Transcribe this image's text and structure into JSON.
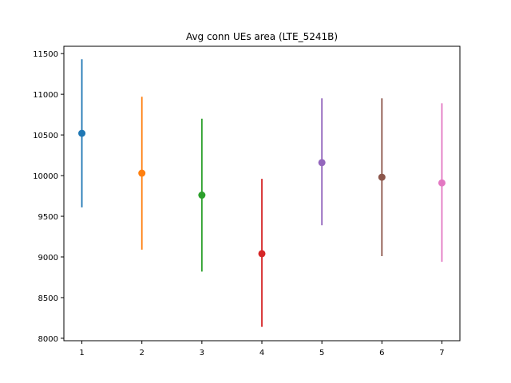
{
  "chart_data": {
    "type": "scatter",
    "title": "Avg conn UEs area (LTE_5241B)",
    "xlabel": "",
    "ylabel": "",
    "x": [
      1,
      2,
      3,
      4,
      5,
      6,
      7
    ],
    "y": [
      10520,
      10030,
      9760,
      9040,
      10160,
      9980,
      9910
    ],
    "yerr_low": [
      9610,
      9090,
      8820,
      8140,
      9390,
      9010,
      8940
    ],
    "yerr_high": [
      11430,
      10970,
      10700,
      9960,
      10950,
      10950,
      10890
    ],
    "colors": [
      "#1f77b4",
      "#ff7f0e",
      "#2ca02c",
      "#d62728",
      "#9467bd",
      "#8c564b",
      "#e377c2"
    ],
    "xticks": [
      "1",
      "2",
      "3",
      "4",
      "5",
      "6",
      "7"
    ],
    "yticks": [
      8000,
      8500,
      9000,
      9500,
      10000,
      10500,
      11000,
      11500
    ],
    "xlim": [
      0.7,
      7.3
    ],
    "ylim": [
      7970,
      11590
    ],
    "grid": false,
    "legend": "none"
  }
}
